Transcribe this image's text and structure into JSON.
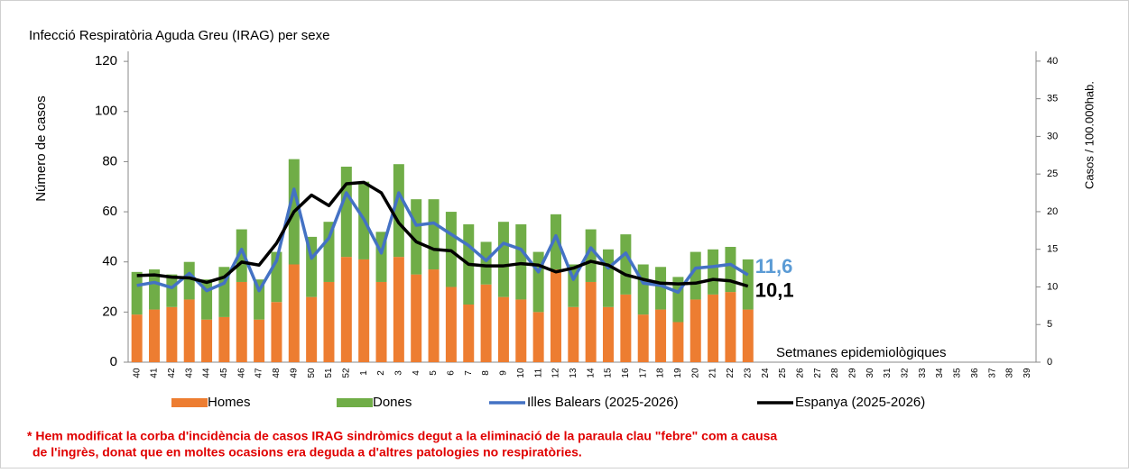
{
  "chart_data": {
    "type": "bar_line",
    "title": "Infecció Respiratòria Aguda Greu (IRAG) per sexe",
    "ylabel": "Número de casos",
    "y2label": "Casos / 100.000hab.",
    "xlabel": "Setmanes epidemiològiques",
    "categories": [
      "40",
      "41",
      "42",
      "43",
      "44",
      "45",
      "46",
      "47",
      "48",
      "49",
      "50",
      "51",
      "52",
      "1",
      "2",
      "3",
      "4",
      "5",
      "6",
      "7",
      "8",
      "9",
      "10",
      "11",
      "12",
      "13",
      "14",
      "15",
      "16",
      "17",
      "18",
      "19",
      "20",
      "21",
      "22",
      "23",
      "24",
      "25",
      "26",
      "27",
      "28",
      "29",
      "30",
      "31",
      "32",
      "33",
      "34",
      "35",
      "36",
      "37",
      "38",
      "39"
    ],
    "series": [
      {
        "name": "Homes",
        "type": "bar",
        "color": "#ed7d31",
        "values": [
          19,
          21,
          22,
          25,
          17,
          18,
          32,
          17,
          24,
          39,
          26,
          32,
          42,
          41,
          32,
          42,
          35,
          37,
          30,
          23,
          31,
          26,
          25,
          20,
          37,
          22,
          32,
          22,
          27,
          19,
          21,
          16,
          25,
          27,
          28,
          21,
          null,
          null,
          null,
          null,
          null,
          null,
          null,
          null,
          null,
          null,
          null,
          null,
          null,
          null,
          null,
          null
        ]
      },
      {
        "name": "Dones",
        "type": "bar",
        "color": "#70ad47",
        "values": [
          17,
          16,
          13,
          15,
          16,
          20,
          21,
          16,
          20,
          42,
          24,
          24,
          36,
          31,
          20,
          37,
          30,
          28,
          30,
          32,
          17,
          30,
          30,
          24,
          22,
          17,
          21,
          23,
          24,
          20,
          17,
          18,
          19,
          18,
          18,
          20,
          null,
          null,
          null,
          null,
          null,
          null,
          null,
          null,
          null,
          null,
          null,
          null,
          null,
          null,
          null,
          null
        ]
      },
      {
        "name": "Illes Balears (2025-2026)",
        "type": "line",
        "axis": "y2",
        "color": "#4472c4",
        "values": [
          10.2,
          10.6,
          9.9,
          11.8,
          9.5,
          10.5,
          15.0,
          9.5,
          13.5,
          23,
          13.8,
          16.5,
          22.5,
          19,
          14.5,
          22.5,
          18.2,
          18.5,
          17,
          15.5,
          13.5,
          15.8,
          15,
          12,
          16.8,
          11,
          15.2,
          12.5,
          14.5,
          10.5,
          10.2,
          9.3,
          12.5,
          12.7,
          13,
          11.6,
          null,
          null,
          null,
          null,
          null,
          null,
          null,
          null,
          null,
          null,
          null,
          null,
          null,
          null,
          null,
          null
        ],
        "value_labels": [
          null,
          null,
          null,
          null,
          null,
          null,
          null,
          null,
          null,
          null,
          null,
          null,
          null,
          null,
          null,
          null,
          null,
          null,
          null,
          null,
          null,
          null,
          null,
          null,
          null,
          null,
          null,
          null,
          null,
          null,
          null,
          null,
          null,
          null,
          null,
          "11,6",
          null,
          null,
          null,
          null,
          null,
          null,
          null,
          null,
          null,
          null,
          null,
          null,
          null,
          null,
          null,
          null
        ]
      },
      {
        "name": "Espanya (2025-2026)",
        "type": "line",
        "axis": "y2",
        "color": "#000000",
        "values": [
          11.5,
          11.6,
          11.3,
          11.2,
          10.6,
          11.3,
          13.3,
          12.9,
          15.8,
          20,
          22.2,
          20.8,
          23.7,
          23.9,
          22.5,
          18.5,
          16,
          15,
          14.8,
          13,
          12.8,
          12.8,
          13.1,
          12.9,
          12,
          12.5,
          13.4,
          12.9,
          11.6,
          11,
          10.5,
          10.4,
          10.5,
          11,
          10.8,
          10.1,
          null,
          null,
          null,
          null,
          null,
          null,
          null,
          null,
          null,
          null,
          null,
          null,
          null,
          null,
          null,
          null
        ],
        "value_labels": [
          null,
          null,
          null,
          null,
          null,
          null,
          null,
          null,
          null,
          null,
          null,
          null,
          null,
          null,
          null,
          null,
          null,
          null,
          null,
          null,
          null,
          null,
          null,
          null,
          null,
          null,
          null,
          null,
          null,
          null,
          null,
          null,
          null,
          null,
          null,
          "10,1",
          null,
          null,
          null,
          null,
          null,
          null,
          null,
          null,
          null,
          null,
          null,
          null,
          null,
          null,
          null,
          null
        ]
      }
    ],
    "ylim": [
      0,
      124
    ],
    "yticks": [
      0,
      20,
      40,
      60,
      80,
      100,
      120
    ],
    "y2lim": [
      0,
      41.3
    ],
    "y2ticks": [
      0,
      5,
      10,
      15,
      20,
      25,
      30,
      35,
      40
    ],
    "notes": [
      "* Hem modificat la corba d'incidència de casos IRAG sindròmics degut a la eliminació de la paraula clau \"febre\" com a causa",
      "de l'ingrès, donat que en moltes ocasions era deguda a d'altres patologies no respiratòries."
    ]
  }
}
